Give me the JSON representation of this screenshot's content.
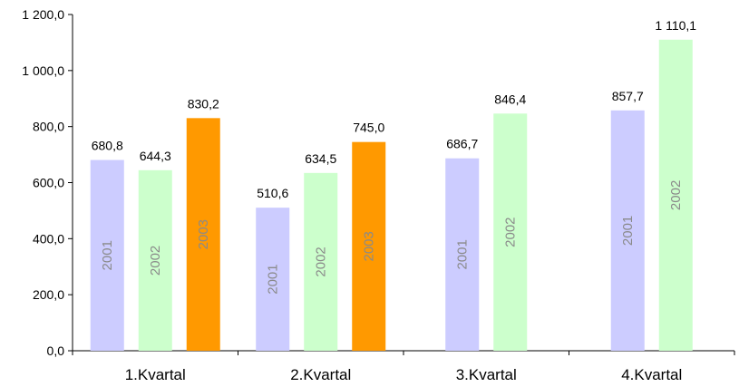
{
  "chart_data": {
    "type": "bar",
    "title": "",
    "xlabel": "",
    "ylabel": "",
    "categories": [
      "1.Kvartal",
      "2.Kvartal",
      "3.Kvartal",
      "4.Kvartal"
    ],
    "ylim": [
      0,
      1200
    ],
    "yticks": [
      0,
      200,
      400,
      600,
      800,
      1000,
      1200
    ],
    "ytick_labels": [
      "0,0",
      "200,0",
      "400,0",
      "600,0",
      "800,0",
      "1 000,0",
      "1 200,0"
    ],
    "grid": false,
    "series": [
      {
        "name": "2001",
        "color": "#ccccff",
        "values": [
          680.8,
          510.6,
          686.7,
          857.7
        ],
        "labels": [
          "680,8",
          "510,6",
          "686,7",
          "857,7"
        ]
      },
      {
        "name": "2002",
        "color": "#ccffcc",
        "values": [
          644.3,
          634.5,
          846.4,
          1110.1
        ],
        "labels": [
          "644,3",
          "634,5",
          "846,4",
          "1 110,1"
        ]
      },
      {
        "name": "2003",
        "color": "#ff9900",
        "values": [
          830.2,
          745.0,
          null,
          null
        ],
        "labels": [
          "830,2",
          "745,0",
          null,
          null
        ]
      }
    ]
  }
}
